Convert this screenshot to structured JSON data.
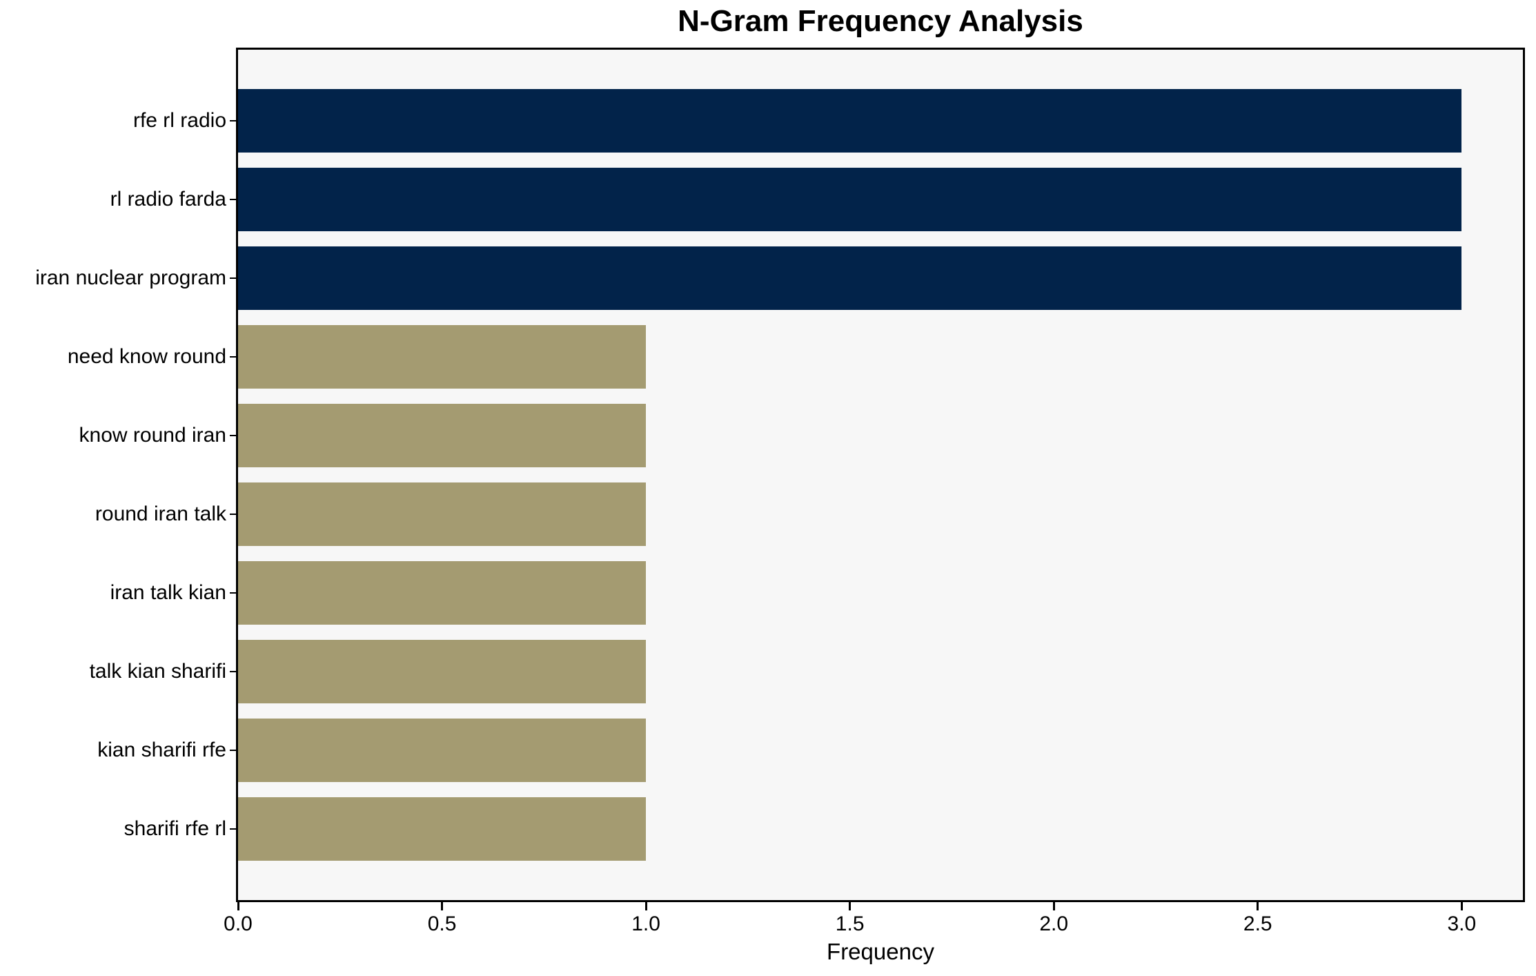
{
  "chart_data": {
    "type": "bar",
    "orientation": "horizontal",
    "title": "N-Gram Frequency Analysis",
    "xlabel": "Frequency",
    "ylabel": "",
    "categories": [
      "rfe rl radio",
      "rl radio farda",
      "iran nuclear program",
      "need know round",
      "know round iran",
      "round iran talk",
      "iran talk kian",
      "talk kian sharifi",
      "kian sharifi rfe",
      "sharifi rfe rl"
    ],
    "values": [
      3,
      3,
      3,
      1,
      1,
      1,
      1,
      1,
      1,
      1
    ],
    "bar_colors": [
      "#02234A",
      "#02234A",
      "#02234A",
      "#A49B71",
      "#A49B71",
      "#A49B71",
      "#A49B71",
      "#A49B71",
      "#A49B71",
      "#A49B71"
    ],
    "xlim": [
      0,
      3.15
    ],
    "xticks": [
      "0.0",
      "0.5",
      "1.0",
      "1.5",
      "2.0",
      "2.5",
      "3.0"
    ],
    "xtick_values": [
      0,
      0.5,
      1.0,
      1.5,
      2.0,
      2.5,
      3.0
    ],
    "grid": false,
    "legend": null,
    "colors": {
      "navy": "#02234A",
      "khaki": "#A49B71",
      "plot_background": "#F7F7F7",
      "figure_background": "#FFFFFF",
      "spine": "#000000",
      "text": "#000000"
    }
  }
}
